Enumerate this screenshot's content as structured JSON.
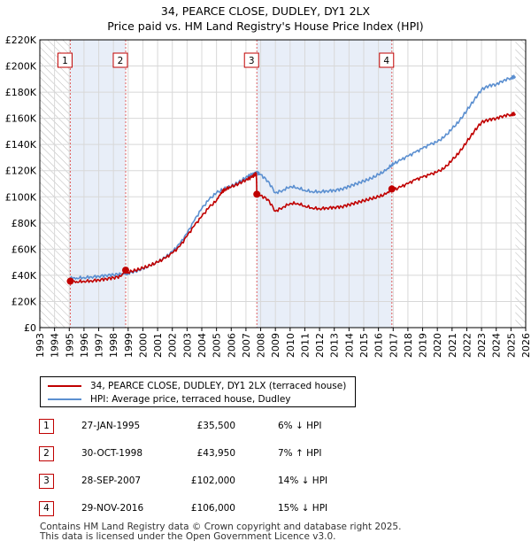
{
  "title": {
    "line1": "34, PEARCE CLOSE, DUDLEY, DY1 2LX",
    "line2": "Price paid vs. HM Land Registry's House Price Index (HPI)"
  },
  "chart_data": {
    "type": "line",
    "x_range": [
      1993.0,
      2026.0
    ],
    "ylim": [
      0,
      220000
    ],
    "y_ticks": [
      0,
      20000,
      40000,
      60000,
      80000,
      100000,
      120000,
      140000,
      160000,
      180000,
      200000,
      220000
    ],
    "y_tick_labels": [
      "£0",
      "£20K",
      "£40K",
      "£60K",
      "£80K",
      "£100K",
      "£120K",
      "£140K",
      "£160K",
      "£180K",
      "£200K",
      "£220K"
    ],
    "x_ticks": [
      1993,
      1994,
      1995,
      1996,
      1997,
      1998,
      1999,
      2000,
      2001,
      2002,
      2003,
      2004,
      2005,
      2006,
      2007,
      2008,
      2009,
      2010,
      2011,
      2012,
      2013,
      2014,
      2015,
      2016,
      2017,
      2018,
      2019,
      2020,
      2021,
      2022,
      2023,
      2024,
      2025,
      2026
    ],
    "x_tick_labels": [
      "1993",
      "1994",
      "1995",
      "1996",
      "1997",
      "1998",
      "1999",
      "2000",
      "2001",
      "2002",
      "2003",
      "2004",
      "2005",
      "2006",
      "2007",
      "2008",
      "2009",
      "2010",
      "2011",
      "2012",
      "2013",
      "2014",
      "2015",
      "2016",
      "2017",
      "2018",
      "2019",
      "2020",
      "2021",
      "2022",
      "2023",
      "2024",
      "2025",
      "2026"
    ],
    "grid": true,
    "hatch_ranges": [
      [
        1993.0,
        1995.07
      ],
      [
        2025.3,
        2026.0
      ]
    ],
    "shaded_ranges": [
      [
        1995.07,
        1998.83
      ],
      [
        2007.74,
        2016.91
      ]
    ],
    "series": [
      {
        "name": "34, PEARCE CLOSE, DUDLEY, DY1 2LX (terraced house)",
        "color": "#c00000",
        "points": [
          [
            1995.07,
            35500
          ],
          [
            1995.5,
            35200
          ],
          [
            1996.0,
            35500
          ],
          [
            1996.5,
            35800
          ],
          [
            1997.0,
            36500
          ],
          [
            1997.5,
            37300
          ],
          [
            1998.0,
            38200
          ],
          [
            1998.5,
            39200
          ],
          [
            1998.83,
            43950
          ],
          [
            1999.0,
            42400
          ],
          [
            1999.5,
            43800
          ],
          [
            2000.0,
            45500
          ],
          [
            2000.5,
            47500
          ],
          [
            2001.0,
            50000
          ],
          [
            2001.5,
            53000
          ],
          [
            2002.0,
            57000
          ],
          [
            2002.5,
            62000
          ],
          [
            2003.0,
            70000
          ],
          [
            2003.5,
            78000
          ],
          [
            2004.0,
            85000
          ],
          [
            2004.5,
            92000
          ],
          [
            2005.0,
            97000
          ],
          [
            2005.3,
            103000
          ],
          [
            2005.6,
            106000
          ],
          [
            2006.0,
            107500
          ],
          [
            2006.5,
            110000
          ],
          [
            2007.0,
            113000
          ],
          [
            2007.4,
            115000
          ],
          [
            2007.7,
            118000
          ],
          [
            2007.74,
            102000
          ],
          [
            2008.0,
            101000
          ],
          [
            2008.5,
            98000
          ],
          [
            2009.0,
            89000
          ],
          [
            2009.5,
            92000
          ],
          [
            2010.0,
            95000
          ],
          [
            2010.5,
            95000
          ],
          [
            2011.0,
            93000
          ],
          [
            2011.5,
            91500
          ],
          [
            2012.0,
            91000
          ],
          [
            2012.5,
            91500
          ],
          [
            2013.0,
            92000
          ],
          [
            2013.5,
            92500
          ],
          [
            2014.0,
            94000
          ],
          [
            2014.5,
            95500
          ],
          [
            2015.0,
            97000
          ],
          [
            2015.5,
            98500
          ],
          [
            2016.0,
            100000
          ],
          [
            2016.5,
            102000
          ],
          [
            2016.91,
            106000
          ],
          [
            2017.0,
            105000
          ],
          [
            2017.5,
            107500
          ],
          [
            2018.0,
            110000
          ],
          [
            2018.5,
            113000
          ],
          [
            2019.0,
            115000
          ],
          [
            2019.5,
            117000
          ],
          [
            2020.0,
            119000
          ],
          [
            2020.5,
            122000
          ],
          [
            2021.0,
            128000
          ],
          [
            2021.5,
            134000
          ],
          [
            2022.0,
            142000
          ],
          [
            2022.5,
            150000
          ],
          [
            2023.0,
            157000
          ],
          [
            2023.5,
            159000
          ],
          [
            2024.0,
            160000
          ],
          [
            2024.5,
            162000
          ],
          [
            2025.0,
            163000
          ],
          [
            2025.3,
            163500
          ]
        ]
      },
      {
        "name": "HPI: Average price, terraced house, Dudley",
        "color": "#5b8fd0",
        "points": [
          [
            1995.07,
            37700
          ],
          [
            1995.5,
            38000
          ],
          [
            1996.0,
            38300
          ],
          [
            1996.5,
            38800
          ],
          [
            1997.0,
            39300
          ],
          [
            1997.5,
            40000
          ],
          [
            1998.0,
            40500
          ],
          [
            1998.5,
            41000
          ],
          [
            1998.83,
            41100
          ],
          [
            1999.0,
            41800
          ],
          [
            1999.5,
            43000
          ],
          [
            2000.0,
            45000
          ],
          [
            2000.5,
            47500
          ],
          [
            2001.0,
            50000
          ],
          [
            2001.5,
            53500
          ],
          [
            2002.0,
            58000
          ],
          [
            2002.5,
            64000
          ],
          [
            2003.0,
            72000
          ],
          [
            2003.5,
            82000
          ],
          [
            2004.0,
            91000
          ],
          [
            2004.5,
            98000
          ],
          [
            2005.0,
            103000
          ],
          [
            2005.5,
            106000
          ],
          [
            2006.0,
            108000
          ],
          [
            2006.5,
            111000
          ],
          [
            2007.0,
            115000
          ],
          [
            2007.4,
            117000
          ],
          [
            2007.74,
            118600
          ],
          [
            2008.0,
            117000
          ],
          [
            2008.5,
            112000
          ],
          [
            2009.0,
            103000
          ],
          [
            2009.5,
            105000
          ],
          [
            2010.0,
            108000
          ],
          [
            2010.5,
            107000
          ],
          [
            2011.0,
            105000
          ],
          [
            2011.5,
            104000
          ],
          [
            2012.0,
            104000
          ],
          [
            2012.5,
            104500
          ],
          [
            2013.0,
            105000
          ],
          [
            2013.5,
            106000
          ],
          [
            2014.0,
            108000
          ],
          [
            2014.5,
            110000
          ],
          [
            2015.0,
            112000
          ],
          [
            2015.5,
            114000
          ],
          [
            2016.0,
            117000
          ],
          [
            2016.5,
            120000
          ],
          [
            2016.91,
            124700
          ],
          [
            2017.0,
            125000
          ],
          [
            2017.5,
            128000
          ],
          [
            2018.0,
            131000
          ],
          [
            2018.5,
            134000
          ],
          [
            2019.0,
            137000
          ],
          [
            2019.5,
            140000
          ],
          [
            2020.0,
            142000
          ],
          [
            2020.5,
            146000
          ],
          [
            2021.0,
            152000
          ],
          [
            2021.5,
            158000
          ],
          [
            2022.0,
            166000
          ],
          [
            2022.5,
            174000
          ],
          [
            2023.0,
            182000
          ],
          [
            2023.5,
            185000
          ],
          [
            2024.0,
            186000
          ],
          [
            2024.5,
            189000
          ],
          [
            2025.0,
            191000
          ],
          [
            2025.3,
            192000
          ]
        ]
      }
    ],
    "sales": [
      {
        "label": "1",
        "x": 1995.07,
        "price": 35500
      },
      {
        "label": "2",
        "x": 1998.83,
        "price": 43950
      },
      {
        "label": "3",
        "x": 2007.74,
        "price": 102000
      },
      {
        "label": "4",
        "x": 2016.91,
        "price": 106000
      }
    ]
  },
  "legend": {
    "property_label": "34, PEARCE CLOSE, DUDLEY, DY1 2LX (terraced house)",
    "hpi_label": "HPI: Average price, terraced house, Dudley"
  },
  "transactions": [
    {
      "num": "1",
      "date": "27-JAN-1995",
      "price": "£35,500",
      "hpi": "6% ↓ HPI"
    },
    {
      "num": "2",
      "date": "30-OCT-1998",
      "price": "£43,950",
      "hpi": "7% ↑ HPI"
    },
    {
      "num": "3",
      "date": "28-SEP-2007",
      "price": "£102,000",
      "hpi": "14% ↓ HPI"
    },
    {
      "num": "4",
      "date": "29-NOV-2016",
      "price": "£106,000",
      "hpi": "15% ↓ HPI"
    }
  ],
  "footer": {
    "line1": "Contains HM Land Registry data © Crown copyright and database right 2025.",
    "line2": "This data is licensed under the Open Government Licence v3.0."
  }
}
